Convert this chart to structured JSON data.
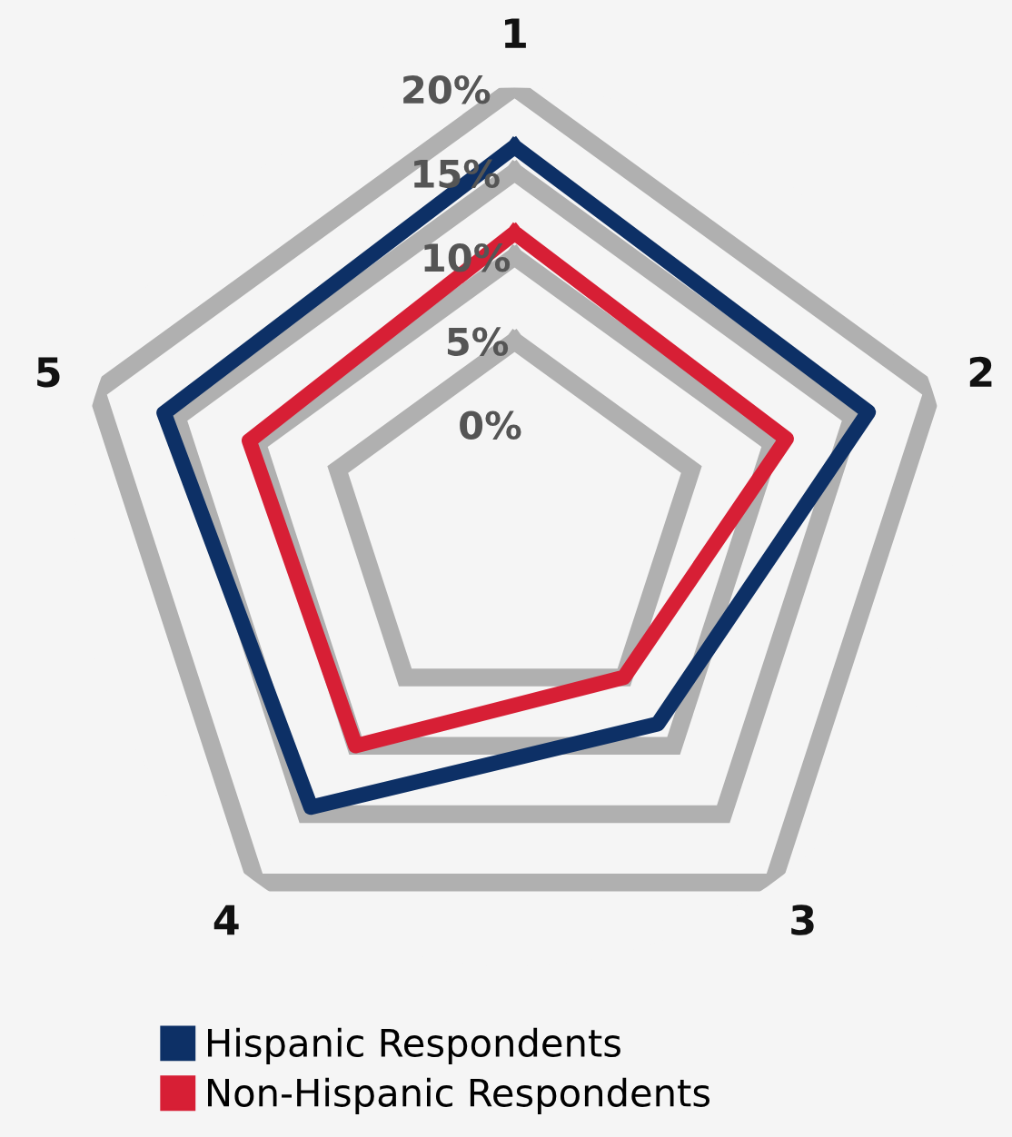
{
  "chart_data": {
    "type": "radar",
    "categories": [
      "1",
      "2",
      "3",
      "4",
      "5"
    ],
    "ylim": [
      -6,
      20
    ],
    "yticks": [
      {
        "value": 0,
        "label": "0%"
      },
      {
        "value": 5,
        "label": "5%"
      },
      {
        "value": 10,
        "label": "10%"
      },
      {
        "value": 15,
        "label": "15%"
      },
      {
        "value": 20,
        "label": "20%"
      }
    ],
    "grid": true,
    "legend": "bottom",
    "marker": "none",
    "line_style": "solid",
    "series": [
      {
        "name": "Hispanic Respondents",
        "color": "#0d3066",
        "values": [
          16.5,
          16,
          8.4,
          14.5,
          15.8
        ]
      },
      {
        "name": "Non-Hispanic Respondents",
        "color": "#d71f35",
        "values": [
          11.4,
          10.9,
          5,
          10,
          10.5
        ]
      }
    ]
  }
}
